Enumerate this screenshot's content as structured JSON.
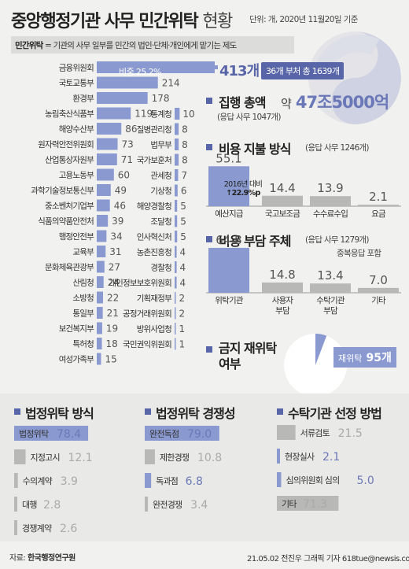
{
  "header": {
    "title_main": "중앙행정기관 사무 민간위탁",
    "title_sub": "현황",
    "unit_note": "단위: 개, 2020년 11월20일 기준",
    "definition_term": "민간위탁",
    "definition_text": " = 기관의 사무 일부를 민간의 법인·단체·개인에게 맡기는 제도"
  },
  "agencies": {
    "top_value_label": "413개",
    "share_label": "비중 25.2%",
    "summary_label": "36개 부처 총 1639개",
    "left": [
      {
        "name": "금융위원회",
        "value": 413
      },
      {
        "name": "국토교통부",
        "value": 214
      },
      {
        "name": "환경부",
        "value": 178
      },
      {
        "name": "농림축산식품부",
        "value": 119
      },
      {
        "name": "해양수산부",
        "value": 86
      },
      {
        "name": "원자력안전위원회",
        "value": 73
      },
      {
        "name": "산업통상자원부",
        "value": 71
      },
      {
        "name": "고용노동부",
        "value": 60
      },
      {
        "name": "과학기술정보통신부",
        "value": 49
      },
      {
        "name": "중소벤처기업부",
        "value": 46
      },
      {
        "name": "식품의약품안전처",
        "value": 39
      },
      {
        "name": "행정안전부",
        "value": 34
      },
      {
        "name": "교육부",
        "value": 31
      },
      {
        "name": "문화체육관광부",
        "value": 27
      },
      {
        "name": "산림청",
        "value": 24
      },
      {
        "name": "소방청",
        "value": 22
      },
      {
        "name": "통일부",
        "value": 21
      },
      {
        "name": "보건복지부",
        "value": 19
      },
      {
        "name": "특허청",
        "value": 18
      },
      {
        "name": "여성가족부",
        "value": 15
      }
    ],
    "right": [
      {
        "name": "통계청",
        "value": 10
      },
      {
        "name": "질병관리청",
        "value": 8
      },
      {
        "name": "법무부",
        "value": 8
      },
      {
        "name": "국가보훈처",
        "value": 8
      },
      {
        "name": "관세청",
        "value": 7
      },
      {
        "name": "기상청",
        "value": 6
      },
      {
        "name": "해양경찰청",
        "value": 5
      },
      {
        "name": "조달청",
        "value": 5
      },
      {
        "name": "인사혁신처",
        "value": 5
      },
      {
        "name": "농촌진흥청",
        "value": 4
      },
      {
        "name": "경찰청",
        "value": 4
      },
      {
        "name": "개인정보보호위원회",
        "value": 4
      },
      {
        "name": "기획재정부",
        "value": 2
      },
      {
        "name": "공정거래위원회",
        "value": 2
      },
      {
        "name": "방위사업청",
        "value": 1
      },
      {
        "name": "국민권익위원회",
        "value": 1
      }
    ]
  },
  "execution": {
    "heading": "집행 총액",
    "amount_prefix": "약",
    "amount": "47조5000억",
    "note": "(응답 사무 1047개)"
  },
  "expenditure": {
    "heading": "비용 지불 방식",
    "note": "(응답 사무 1246개)",
    "annotation_line1": "2016년 대비",
    "annotation_line2": "↑22.9%p",
    "items": [
      {
        "label": "예산지급",
        "value": 55.1
      },
      {
        "label": "국고보조금",
        "value": 14.4
      },
      {
        "label": "수수료수입",
        "value": 13.9
      },
      {
        "label": "요금",
        "value": 2.1
      }
    ]
  },
  "burden": {
    "heading": "비용 부담 주체",
    "note": "(응답 사무 1279개)",
    "note2": "중복응답 포함",
    "items": [
      {
        "label": "위탁기관",
        "value": 64.8
      },
      {
        "label": "사용자\n부담",
        "value": 14.8
      },
      {
        "label": "수탁기관\n부담",
        "value": 13.4
      },
      {
        "label": "기타",
        "value": 7.0
      }
    ]
  },
  "resubcontract": {
    "heading_line1": "금지 재위탁",
    "heading_line2": "여부",
    "label": "재위탁",
    "value_label": "95개",
    "value": 95,
    "total": 1639
  },
  "legal_method": {
    "heading": "법정위탁 방식",
    "items": [
      {
        "label": "법정위탁",
        "value": 78.4
      },
      {
        "label": "지정고시",
        "value": 12.1
      },
      {
        "label": "수의계약",
        "value": 3.9
      },
      {
        "label": "대행",
        "value": 2.8
      },
      {
        "label": "경쟁계약",
        "value": 2.6
      }
    ]
  },
  "competition": {
    "heading": "법정위탁 경쟁성",
    "items": [
      {
        "label": "완전독점",
        "value": 79.0
      },
      {
        "label": "제한경쟁",
        "value": 10.8
      },
      {
        "label": "독과점",
        "value": 6.8
      },
      {
        "label": "완전경쟁",
        "value": 3.4
      }
    ]
  },
  "selection": {
    "heading": "수탁기관 선정 방법",
    "items": [
      {
        "label": "서류검토",
        "value": 21.5
      },
      {
        "label": "현장실사",
        "value": 2.1
      },
      {
        "label": "심의위원회 심의",
        "value": 5.0
      },
      {
        "label": "기타",
        "value": 71.3
      }
    ]
  },
  "footer": {
    "source_prefix": "자료: ",
    "source_name": "한국행정연구원",
    "credit": "21.05.02 전진우 그래픽 기자 618tue@newsis.com"
  },
  "colors": {
    "accent": "#8a9ad0",
    "accent_dark": "#5865a8",
    "gray": "#b8b8b6"
  },
  "chart_data": [
    {
      "type": "bar",
      "title": "",
      "categories": [
        "금융위원회",
        "국토교통부",
        "환경부",
        "농림축산식품부",
        "해양수산부",
        "원자력안전위원회",
        "산업통상자원부",
        "고용노동부",
        "과학기술정보통신부",
        "중소벤처기업부",
        "식품의약품안전처",
        "행정안전부",
        "교육부",
        "문화체육관광부",
        "산림청",
        "소방청",
        "통일부",
        "보건복지부",
        "특허청",
        "여성가족부",
        "통계청",
        "질병관리청",
        "법무부",
        "국가보훈처",
        "관세청",
        "기상청",
        "해양경찰청",
        "조달청",
        "인사혁신처",
        "농촌진흥청",
        "경찰청",
        "개인정보보호위원회",
        "기획재정부",
        "공정거래위원회",
        "방위사업청",
        "국민권익위원회"
      ],
      "values": [
        413,
        214,
        178,
        119,
        86,
        73,
        71,
        60,
        49,
        46,
        39,
        34,
        31,
        27,
        24,
        22,
        21,
        19,
        18,
        15,
        10,
        8,
        8,
        8,
        7,
        6,
        5,
        5,
        5,
        4,
        4,
        4,
        2,
        2,
        1,
        1
      ]
    },
    {
      "type": "bar",
      "title": "비용 지불 방식",
      "categories": [
        "예산지급",
        "국고보조금",
        "수수료수입",
        "요금"
      ],
      "values": [
        55.1,
        14.4,
        13.9,
        2.1
      ]
    },
    {
      "type": "bar",
      "title": "비용 부담 주체",
      "categories": [
        "위탁기관",
        "사용자 부담",
        "수탁기관 부담",
        "기타"
      ],
      "values": [
        64.8,
        14.8,
        13.4,
        7.0
      ]
    },
    {
      "type": "pie",
      "title": "금지 재위탁 여부",
      "categories": [
        "재위탁"
      ],
      "values": [
        95
      ]
    },
    {
      "type": "bar",
      "title": "법정위탁 방식",
      "categories": [
        "법정위탁",
        "지정고시",
        "수의계약",
        "대행",
        "경쟁계약"
      ],
      "values": [
        78.4,
        12.1,
        3.9,
        2.8,
        2.6
      ]
    },
    {
      "type": "bar",
      "title": "법정위탁 경쟁성",
      "categories": [
        "완전독점",
        "제한경쟁",
        "독과점",
        "완전경쟁"
      ],
      "values": [
        79.0,
        10.8,
        6.8,
        3.4
      ]
    },
    {
      "type": "bar",
      "title": "수탁기관 선정 방법",
      "categories": [
        "서류검토",
        "현장실사",
        "심의위원회 심의",
        "기타"
      ],
      "values": [
        21.5,
        2.1,
        5.0,
        71.3
      ]
    }
  ]
}
